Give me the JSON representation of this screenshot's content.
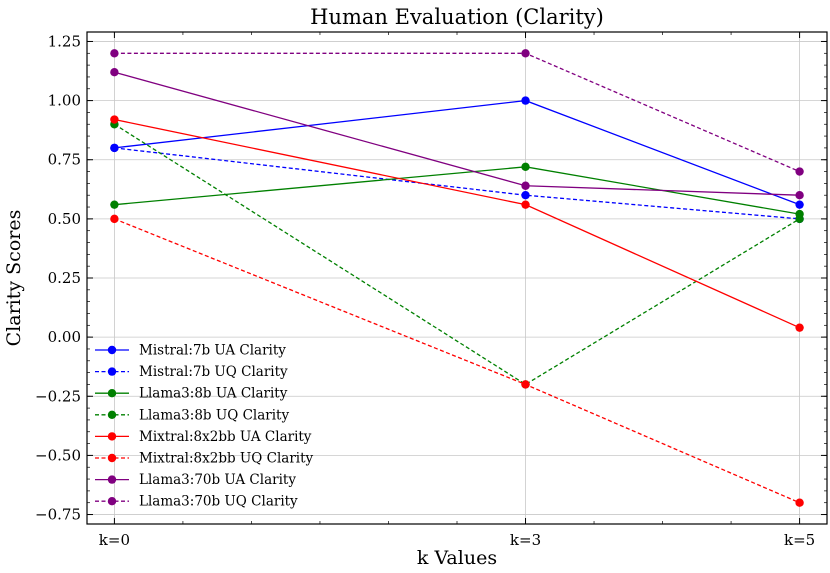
{
  "chart_data": {
    "type": "line",
    "title": "Human Evaluation (Clarity)",
    "xlabel": "k Values",
    "ylabel": "Clarity Scores",
    "categories": [
      "k=0",
      "k=3",
      "k=5"
    ],
    "x": [
      0,
      3,
      5
    ],
    "xlim": [
      -0.2,
      5.2
    ],
    "ylim": [
      -0.79,
      1.29
    ],
    "yticks": [
      -0.75,
      -0.5,
      -0.25,
      0.0,
      0.25,
      0.5,
      0.75,
      1.0,
      1.25
    ],
    "ytick_labels": [
      "−0.75",
      "−0.50",
      "−0.25",
      "0.00",
      "0.25",
      "0.50",
      "0.75",
      "1.00",
      "1.25"
    ],
    "grid": true,
    "legend_position": "lower-left",
    "series": [
      {
        "name": "Mistral:7b UA Clarity",
        "color": "#0000ff",
        "dashed": false,
        "values": [
          0.8,
          1.0,
          0.56
        ]
      },
      {
        "name": "Mistral:7b UQ Clarity",
        "color": "#0000ff",
        "dashed": true,
        "values": [
          0.8,
          0.6,
          0.5
        ]
      },
      {
        "name": "Llama3:8b UA Clarity",
        "color": "#008000",
        "dashed": false,
        "values": [
          0.56,
          0.72,
          0.52
        ]
      },
      {
        "name": "Llama3:8b UQ Clarity",
        "color": "#008000",
        "dashed": true,
        "values": [
          0.9,
          -0.2,
          0.5
        ]
      },
      {
        "name": "Mixtral:8x2bb UA Clarity",
        "color": "#ff0000",
        "dashed": false,
        "values": [
          0.92,
          0.56,
          0.04
        ]
      },
      {
        "name": "Mixtral:8x2bb UQ Clarity",
        "color": "#ff0000",
        "dashed": true,
        "values": [
          0.5,
          -0.2,
          -0.7
        ]
      },
      {
        "name": "Llama3:70b UA Clarity",
        "color": "#800080",
        "dashed": false,
        "values": [
          1.12,
          0.64,
          0.6
        ]
      },
      {
        "name": "Llama3:70b UQ Clarity",
        "color": "#800080",
        "dashed": true,
        "values": [
          1.2,
          1.2,
          0.7
        ]
      }
    ]
  }
}
